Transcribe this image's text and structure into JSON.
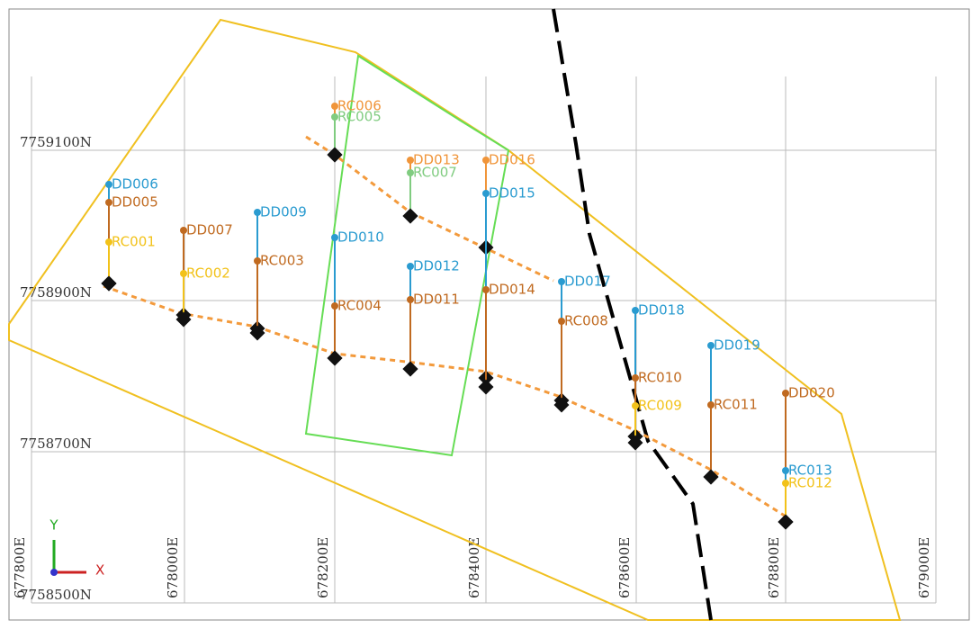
{
  "grid": {
    "eastings": [
      "677800E",
      "678000E",
      "678200E",
      "678400E",
      "678600E",
      "678800E",
      "679000E"
    ],
    "northings": [
      "7759100N",
      "7758900N",
      "7758700N",
      "7758500N"
    ]
  },
  "axes": {
    "y": "Y",
    "x": "X"
  },
  "holes": [
    {
      "label": "DD006"
    },
    {
      "label": "DD005"
    },
    {
      "label": "RC001"
    },
    {
      "label": "DD007"
    },
    {
      "label": "RC002"
    },
    {
      "label": "DD009"
    },
    {
      "label": "RC003"
    },
    {
      "label": "RC006"
    },
    {
      "label": "RC005"
    },
    {
      "label": "DD010"
    },
    {
      "label": "RC004"
    },
    {
      "label": "DD013"
    },
    {
      "label": "RC007"
    },
    {
      "label": "DD012"
    },
    {
      "label": "DD011"
    },
    {
      "label": "DD016"
    },
    {
      "label": "DD015"
    },
    {
      "label": "DD014"
    },
    {
      "label": "DD017"
    },
    {
      "label": "RC008"
    },
    {
      "label": "DD018"
    },
    {
      "label": "RC010"
    },
    {
      "label": "RC009"
    },
    {
      "label": "DD019"
    },
    {
      "label": "RC011"
    },
    {
      "label": "DD020"
    },
    {
      "label": "RC013"
    },
    {
      "label": "RC012"
    }
  ]
}
